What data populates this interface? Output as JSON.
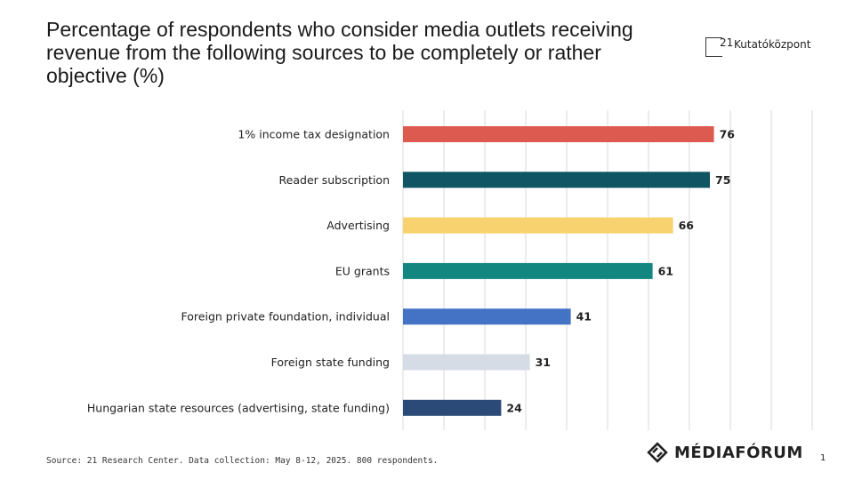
{
  "header": {
    "title": "Percentage of respondents who consider media outlets receiving\nrevenue from the following sources to be completely or rather\nobjective (%)",
    "brand_number": "21",
    "brand_name": "Kutatóközpont"
  },
  "chart_data": {
    "type": "bar",
    "orientation": "horizontal",
    "title": "Percentage of respondents who consider media outlets receiving revenue from the following sources to be completely or rather objective (%)",
    "categories": [
      "1% income tax designation",
      "Reader subscription",
      "Advertising",
      "EU grants",
      "Foreign private foundation, individual",
      "Foreign state funding",
      "Hungarian state resources (advertising, state funding)"
    ],
    "values": [
      76,
      75,
      66,
      61,
      41,
      31,
      24
    ],
    "bar_colors": [
      "#dc5a50",
      "#0f5563",
      "#f8d26e",
      "#13877f",
      "#4472c4",
      "#d6dce5",
      "#2b4a78"
    ],
    "xlim": [
      0,
      100
    ],
    "grid": true,
    "legend": "none",
    "data_labels": true
  },
  "footer": {
    "source": "Source: 21 Research Center. Data collection: May 8-12, 2025. 800 respondents.",
    "logo_text": "MÉDIAFÓRUM",
    "logo_icon": "mediaforum-diamond-icon",
    "page_number": "1"
  }
}
